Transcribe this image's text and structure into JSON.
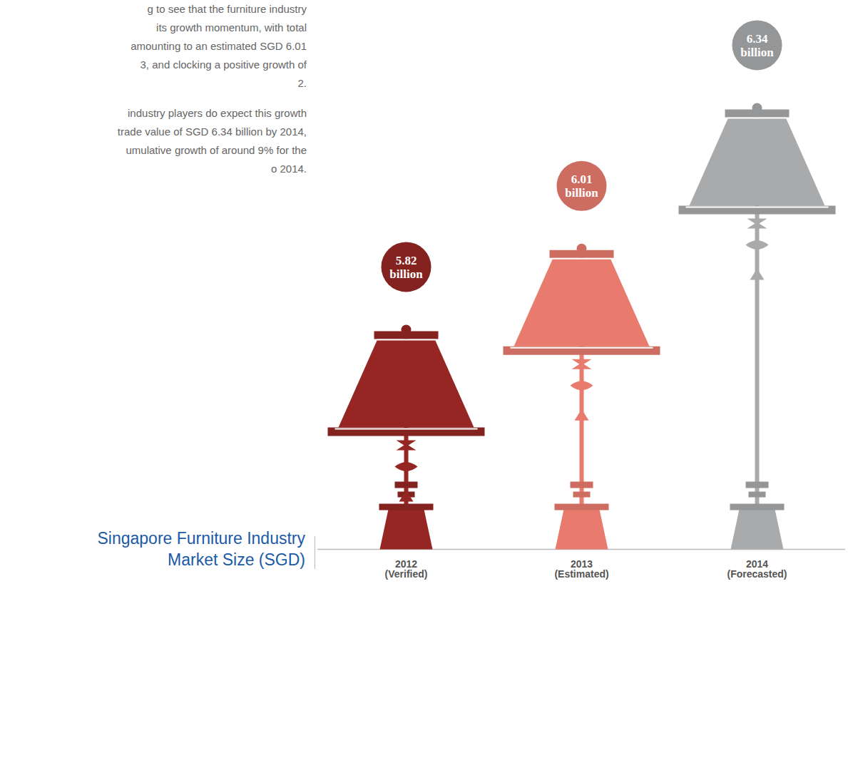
{
  "chart_data": {
    "type": "bar",
    "title": "Singapore Furniture Industry Market Size (SGD)",
    "annotations": [
      "g to see that the furniture industry\nits growth momentum, with total\namounting to an estimated SGD 6.01\n3, and clocking a positive growth of\n2.",
      "industry players do expect this growth\ntrade value of SGD 6.34 billion by 2014,\numulative growth of around 9% for the\no 2014."
    ],
    "categories": [
      "2012 (Verified)",
      "2013 (Estimated)",
      "2014 (Forecasted)"
    ],
    "values": [
      5.82,
      6.01,
      6.34
    ],
    "value_labels": [
      "5.82 billion",
      "6.01 billion",
      "6.34 billion"
    ],
    "colors": [
      "#962623",
      "#e87b6e",
      "#a9aaac"
    ],
    "ylim": [
      5.3,
      6.4
    ],
    "data_labels": true,
    "tick_labels": false
  }
}
